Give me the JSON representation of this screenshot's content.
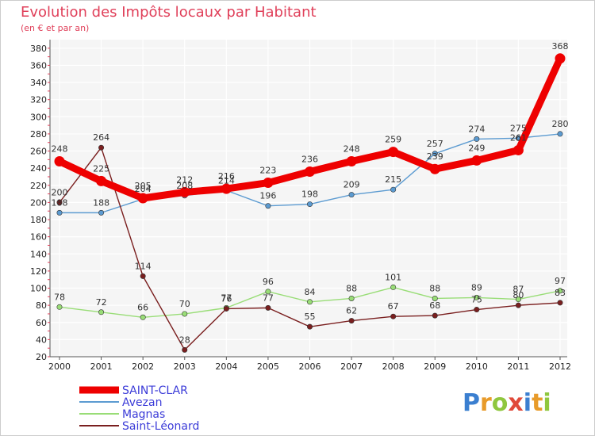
{
  "chart_data": {
    "type": "line",
    "title": "Evolution des Impôts locaux par Habitant",
    "subtitle": "(en € et par an)",
    "xlabel": "",
    "ylabel": "",
    "ylim": [
      20,
      390
    ],
    "yticks": [
      20,
      40,
      60,
      80,
      100,
      120,
      140,
      160,
      180,
      200,
      220,
      240,
      260,
      280,
      300,
      320,
      340,
      360,
      380
    ],
    "categories": [
      "2000",
      "2001",
      "2002",
      "2003",
      "2004",
      "2005",
      "2006",
      "2007",
      "2008",
      "2009",
      "2010",
      "2011",
      "2012"
    ],
    "series": [
      {
        "name": "SAINT-CLAR",
        "color": "#ee0000",
        "values": [
          248,
          225,
          205,
          212,
          216,
          223,
          236,
          248,
          259,
          239,
          249,
          261,
          368
        ]
      },
      {
        "name": "Avezan",
        "color": "#5c9bd1",
        "values": [
          188,
          188,
          204,
          208,
          214,
          196,
          198,
          209,
          215,
          257,
          274,
          275,
          280
        ]
      },
      {
        "name": "Magnas",
        "color": "#99dd77",
        "values": [
          78,
          72,
          66,
          70,
          77,
          96,
          84,
          88,
          101,
          88,
          89,
          87,
          97
        ]
      },
      {
        "name": "Saint-Léonard",
        "color": "#7a1f1f",
        "values": [
          200,
          264,
          114,
          28,
          76,
          77,
          55,
          62,
          67,
          68,
          75,
          80,
          83
        ]
      }
    ],
    "grid": true,
    "legend": "bottom-left"
  },
  "branding": {
    "logo_text": "Proxiti",
    "letter_colors": [
      "#3b7fd0",
      "#e89b2a",
      "#8fc73e",
      "#e04a3a",
      "#3b7fd0",
      "#e89b2a",
      "#8fc73e"
    ]
  }
}
